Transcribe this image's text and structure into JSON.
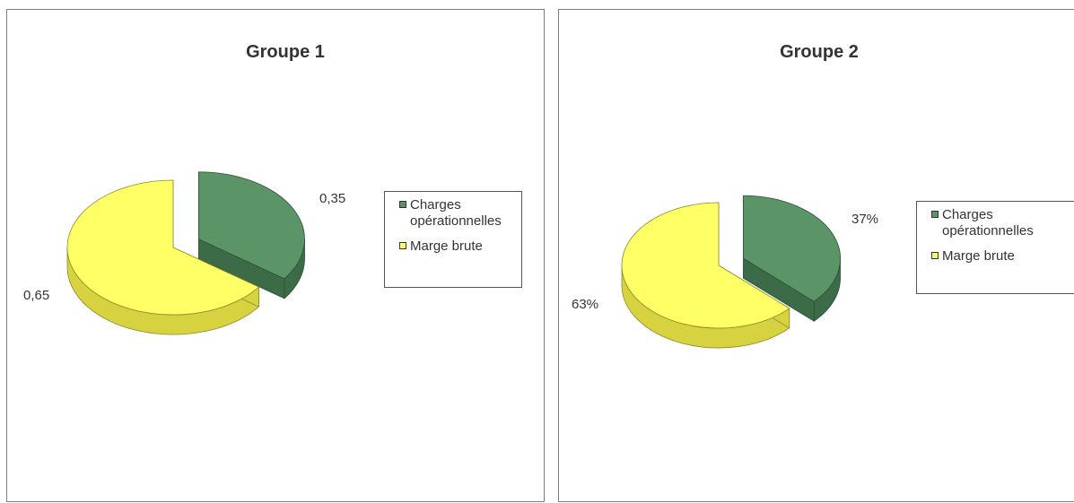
{
  "chart_data": [
    {
      "type": "pie",
      "title": "Groupe 1",
      "categories": [
        "Charges opérationnelles",
        "Marge brute"
      ],
      "values": [
        0.35,
        0.65
      ],
      "data_labels": [
        "0,35",
        "0,65"
      ],
      "colors": [
        "#5a9467",
        "#ffff66"
      ],
      "legend": {
        "position": "right",
        "entries": [
          "Charges opérationnelles",
          "Marge brute"
        ]
      },
      "exploded": true,
      "style": "3d"
    },
    {
      "type": "pie",
      "title": "Groupe 2",
      "categories": [
        "Charges opérationnelles",
        "Marge brute"
      ],
      "values": [
        37,
        63
      ],
      "data_labels": [
        "37%",
        "63%"
      ],
      "colors": [
        "#5a9467",
        "#ffff66"
      ],
      "legend": {
        "position": "right",
        "entries": [
          "Charges opérationnelles",
          "Marge brute"
        ]
      },
      "exploded": true,
      "style": "3d"
    }
  ]
}
